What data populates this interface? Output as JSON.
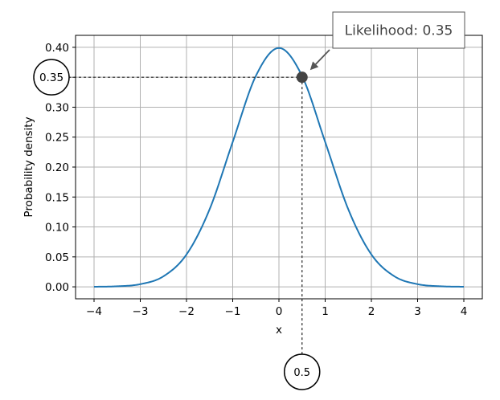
{
  "chart_data": {
    "type": "line",
    "title": "",
    "xlabel": "x",
    "ylabel": "Probability density",
    "xlim": [
      -4.4,
      4.4
    ],
    "ylim": [
      -0.02,
      0.42
    ],
    "grid": true,
    "x_ticks": [
      -4,
      -3,
      -2,
      -1,
      0,
      1,
      2,
      3,
      4
    ],
    "x_tick_labels": [
      "−4",
      "−3",
      "−2",
      "−1",
      "0",
      "1",
      "2",
      "3",
      "4"
    ],
    "y_ticks": [
      0.0,
      0.05,
      0.1,
      0.15,
      0.2,
      0.25,
      0.3,
      0.35,
      0.4
    ],
    "y_tick_labels": [
      "0.00",
      "0.05",
      "0.10",
      "0.15",
      "0.20",
      "0.25",
      "0.30",
      "0.35",
      "0.40"
    ],
    "series": [
      {
        "color": "#1f77b4",
        "x": [
          -4.0,
          -3.5,
          -3.0,
          -2.5,
          -2.0,
          -1.5,
          -1.0,
          -0.5,
          0.0,
          0.5,
          1.0,
          1.5,
          2.0,
          2.5,
          3.0,
          3.5,
          4.0
        ],
        "values": [
          0.0001,
          0.0009,
          0.0044,
          0.0175,
          0.054,
          0.1295,
          0.242,
          0.3521,
          0.3989,
          0.3521,
          0.242,
          0.1295,
          0.054,
          0.0175,
          0.0044,
          0.0009,
          0.0001
        ]
      }
    ],
    "highlight_point": {
      "x": 0.5,
      "y": 0.35,
      "color": "#444444"
    },
    "annotations": {
      "likelihood_label": "Likelihood: 0.35",
      "x_marker_label": "0.5",
      "y_marker_label": "0.35"
    }
  }
}
